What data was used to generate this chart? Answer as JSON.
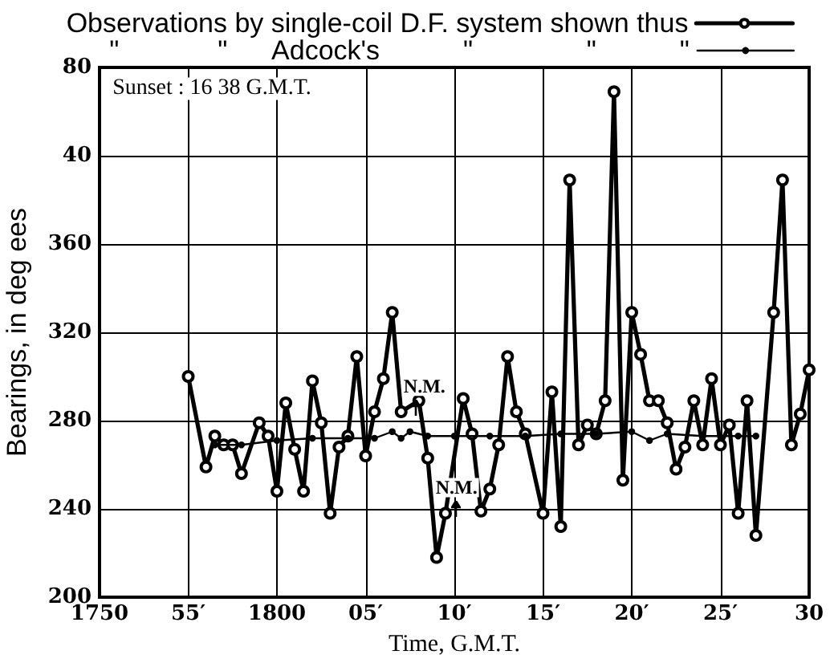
{
  "chart_data": {
    "type": "line",
    "xlabel": "Time, G.M.T.",
    "ylabel": "Bearings, in deg ees",
    "categories": [
      "1750",
      null,
      null,
      null,
      null,
      null,
      null,
      null,
      null,
      null,
      "55′",
      null,
      null,
      null,
      null,
      null,
      null,
      null,
      null,
      null,
      "1800",
      null,
      null,
      null,
      null,
      null,
      null,
      null,
      null,
      null,
      "05′",
      null,
      null,
      null,
      null,
      null,
      null,
      null,
      null,
      null,
      "10′",
      null,
      null,
      null,
      null,
      null,
      null,
      null,
      null,
      null,
      "15′",
      null,
      null,
      null,
      null,
      null,
      null,
      null,
      null,
      null,
      "20′",
      null,
      null,
      null,
      null,
      null,
      null,
      null,
      null,
      null,
      "25′",
      null,
      null,
      null,
      null,
      null,
      null,
      null,
      null,
      null,
      "30"
    ],
    "ylim": [
      200,
      440
    ],
    "yticks": [
      200,
      240,
      280,
      320,
      360
    ],
    "y2lim": [
      -160,
      80
    ],
    "y2ticks": [
      40,
      80
    ],
    "grid": true,
    "legend": "top",
    "marker": "circle",
    "line_style": "solid",
    "annotations": [
      "Sunset : 16 38 G.M.T.",
      "N.M.",
      "N.M."
    ],
    "series": [
      {
        "name": "Observations by single-coil D.F. system shown thus",
        "color": "#000000",
        "values": [
          null,
          null,
          null,
          null,
          null,
          null,
          null,
          null,
          null,
          null,
          300,
          null,
          259,
          273,
          269,
          269,
          256,
          null,
          279,
          273,
          248,
          288,
          267,
          248,
          298,
          279,
          238,
          268,
          273,
          309,
          264,
          284,
          299,
          329,
          284,
          null,
          289,
          263,
          218,
          238,
          null,
          290,
          274,
          239,
          249,
          269,
          309,
          284,
          274,
          null,
          238,
          293,
          232,
          389,
          269,
          278,
          274,
          289,
          429,
          253,
          329,
          310,
          289,
          289,
          279,
          258,
          268,
          289,
          269,
          299,
          269,
          278,
          238,
          289,
          228,
          null,
          329,
          389,
          269,
          283,
          303
        ]
      },
      {
        "name": "\"             \"      Adcock's           \"               \"           \"",
        "color": "#000000",
        "values": [
          null,
          null,
          null,
          null,
          null,
          null,
          null,
          null,
          null,
          null,
          null,
          null,
          null,
          269,
          null,
          null,
          269,
          null,
          null,
          null,
          271,
          null,
          null,
          null,
          272,
          null,
          null,
          null,
          272,
          null,
          null,
          272,
          null,
          275,
          272,
          275,
          null,
          273,
          null,
          null,
          273,
          null,
          null,
          null,
          273,
          null,
          null,
          null,
          273,
          null,
          null,
          null,
          274,
          null,
          null,
          null,
          274,
          null,
          null,
          null,
          275,
          null,
          271,
          null,
          274,
          null,
          null,
          null,
          273,
          null,
          null,
          null,
          273,
          null,
          273,
          null,
          null,
          null,
          null,
          null,
          null
        ]
      }
    ]
  }
}
